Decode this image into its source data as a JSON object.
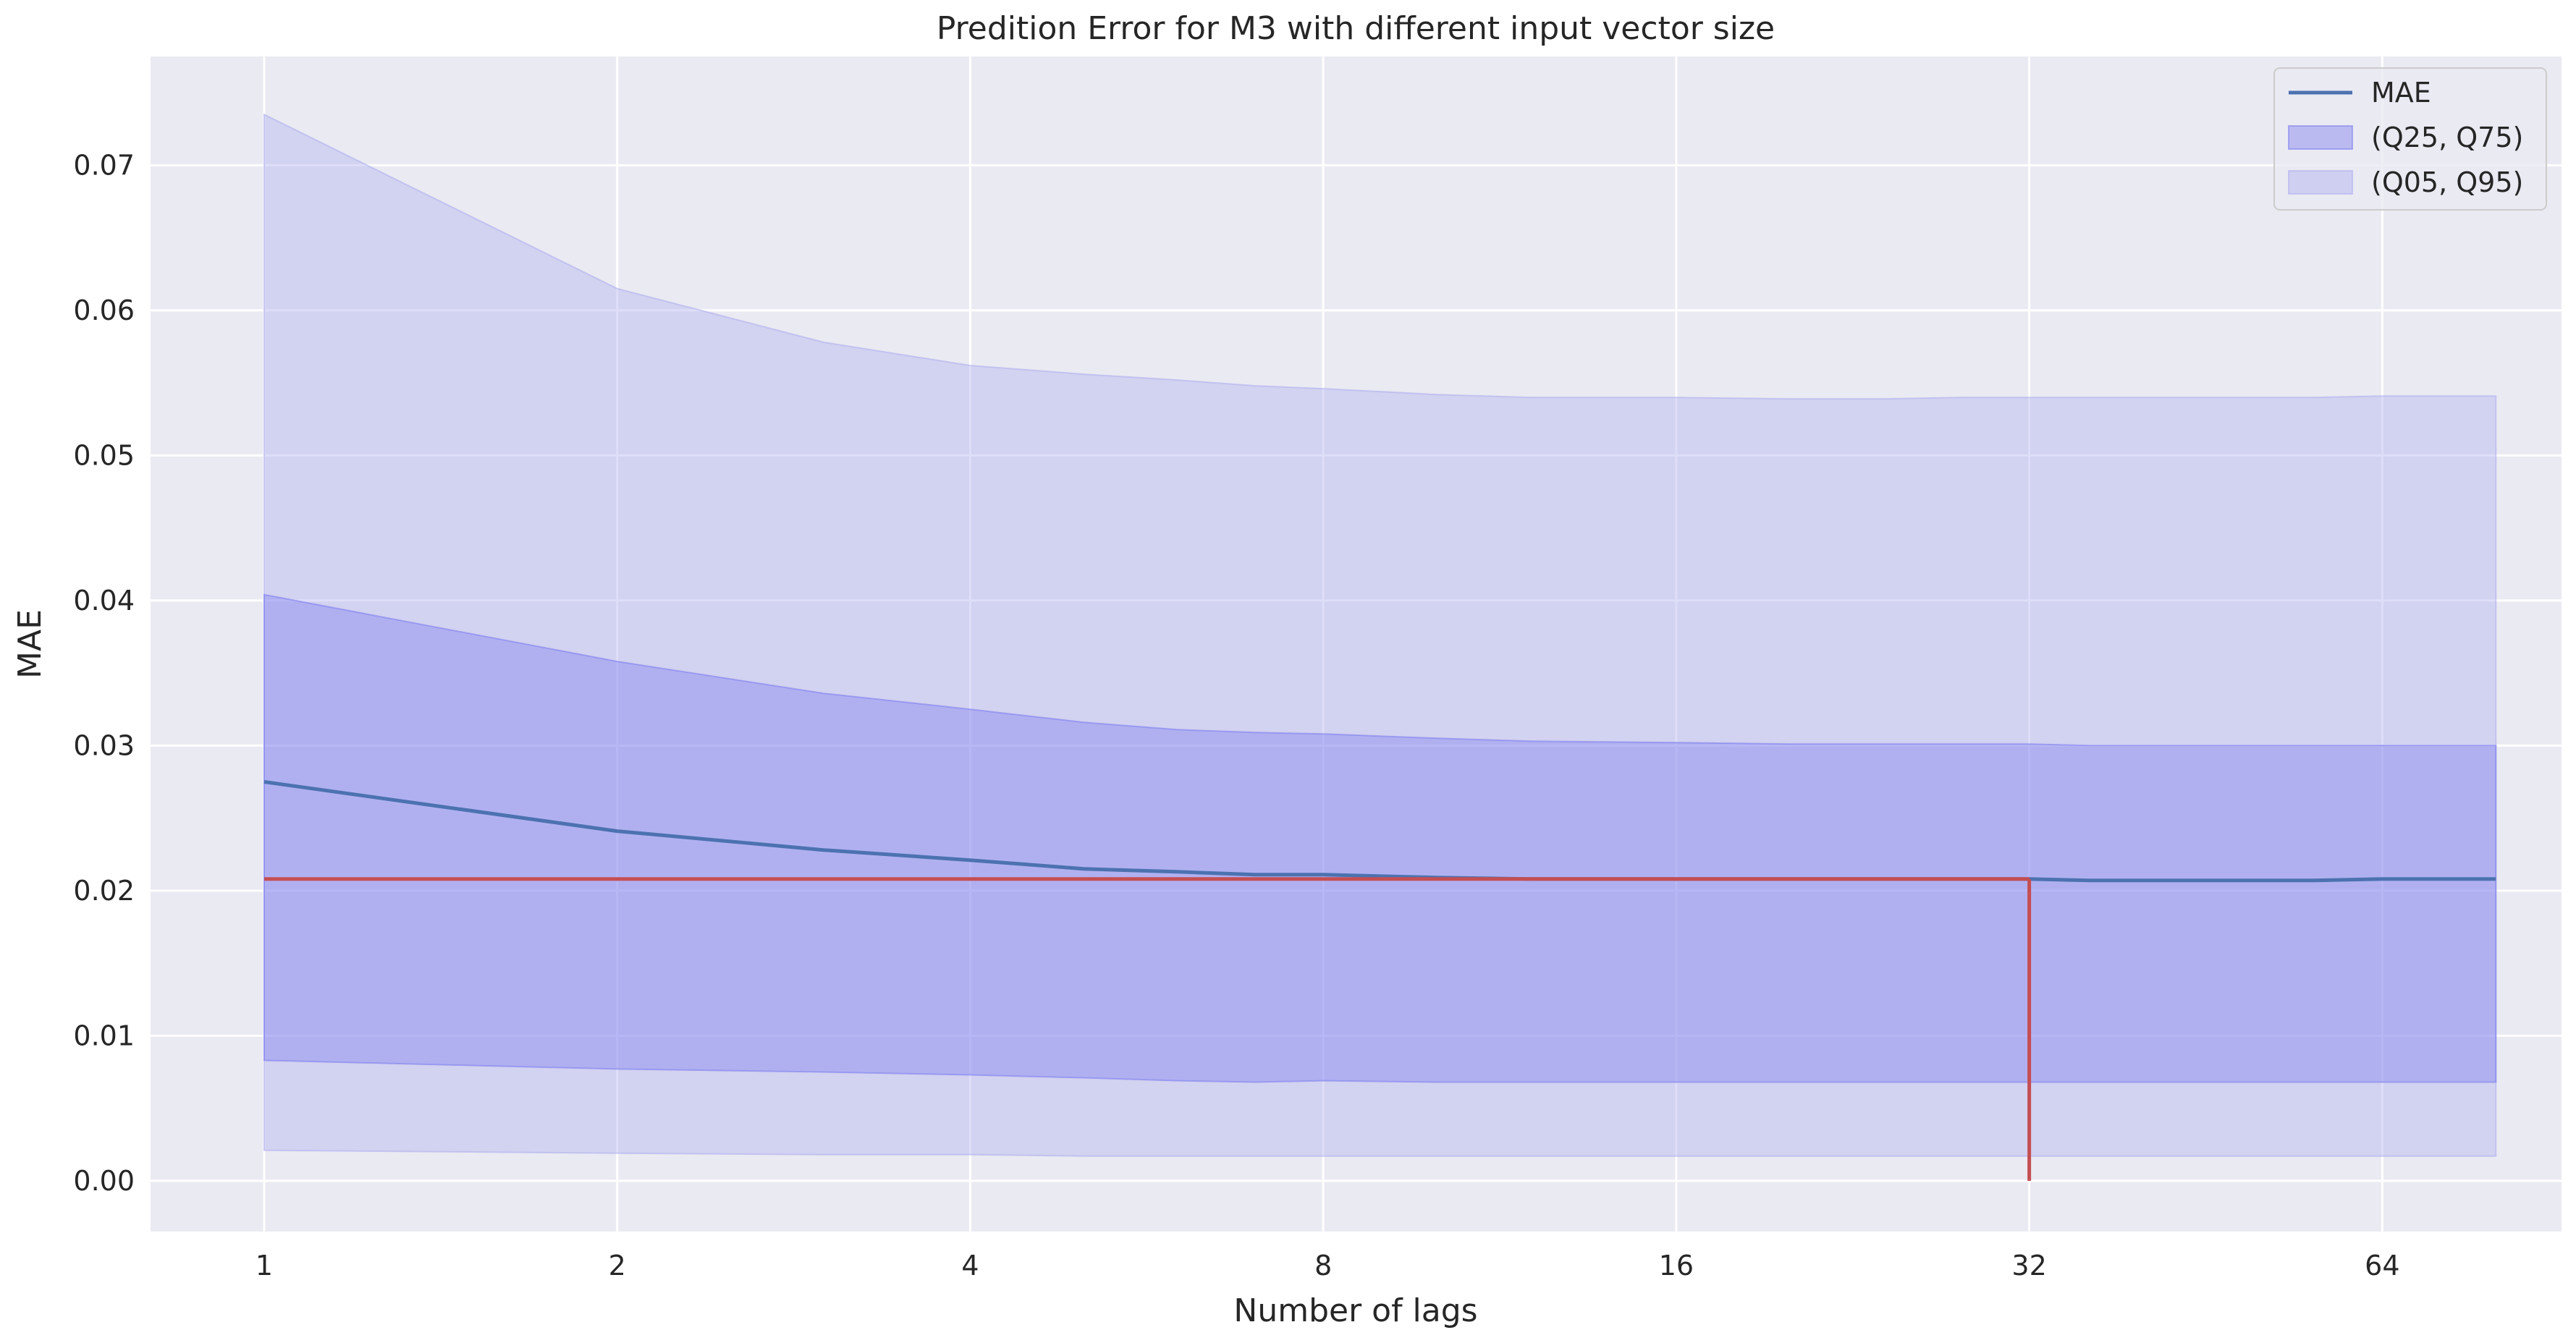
{
  "chart_data": {
    "type": "line",
    "title": "Predition Error for M3 with different input vector size",
    "xlabel": "Number of lags",
    "ylabel": "MAE",
    "x_scale": "log2",
    "xlim": [
      0.8,
      91
    ],
    "ylim": [
      -0.0035,
      0.0775
    ],
    "x_ticks": [
      1,
      2,
      4,
      8,
      16,
      32,
      64
    ],
    "x_tick_labels": [
      "1",
      "2",
      "4",
      "8",
      "16",
      "32",
      "64"
    ],
    "y_ticks": [
      0.0,
      0.01,
      0.02,
      0.03,
      0.04,
      0.05,
      0.06,
      0.07
    ],
    "y_tick_labels": [
      "0.00",
      "0.01",
      "0.02",
      "0.03",
      "0.04",
      "0.05",
      "0.06",
      "0.07"
    ],
    "grid": true,
    "legend_position": "top-right",
    "x": [
      1,
      2,
      3,
      4,
      5,
      6,
      7,
      8,
      10,
      12,
      16,
      20,
      24,
      28,
      32,
      36,
      40,
      48,
      56,
      64,
      72,
      80
    ],
    "series": [
      {
        "name": "MAE",
        "kind": "line",
        "color": "#4c72b0",
        "values": [
          0.0275,
          0.0241,
          0.0228,
          0.0221,
          0.0215,
          0.0213,
          0.0211,
          0.0211,
          0.0209,
          0.0208,
          0.0208,
          0.0208,
          0.0208,
          0.0208,
          0.0208,
          0.0207,
          0.0207,
          0.0207,
          0.0207,
          0.0208,
          0.0208,
          0.0208
        ]
      },
      {
        "name": "(Q25, Q75)",
        "kind": "band",
        "color": "#8080f0",
        "lower": [
          0.0083,
          0.0077,
          0.0075,
          0.0073,
          0.0071,
          0.0069,
          0.0068,
          0.0069,
          0.0068,
          0.0068,
          0.0068,
          0.0068,
          0.0068,
          0.0068,
          0.0068,
          0.0068,
          0.0068,
          0.0068,
          0.0068,
          0.0068,
          0.0068,
          0.0068
        ],
        "upper": [
          0.0404,
          0.0358,
          0.0336,
          0.0325,
          0.0316,
          0.0311,
          0.0309,
          0.0308,
          0.0305,
          0.0303,
          0.0302,
          0.0301,
          0.0301,
          0.0301,
          0.0301,
          0.03,
          0.03,
          0.03,
          0.03,
          0.03,
          0.03,
          0.03
        ]
      },
      {
        "name": "(Q05, Q95)",
        "kind": "band",
        "color": "#b0b0f0",
        "lower": [
          0.0021,
          0.0019,
          0.0018,
          0.0018,
          0.0017,
          0.0017,
          0.0017,
          0.0017,
          0.0017,
          0.0017,
          0.0017,
          0.0017,
          0.0017,
          0.0017,
          0.0017,
          0.0017,
          0.0017,
          0.0017,
          0.0017,
          0.0017,
          0.0017,
          0.0017
        ],
        "upper": [
          0.0735,
          0.0615,
          0.0578,
          0.0562,
          0.0556,
          0.0552,
          0.0548,
          0.0546,
          0.0542,
          0.054,
          0.054,
          0.0539,
          0.0539,
          0.054,
          0.054,
          0.054,
          0.054,
          0.054,
          0.054,
          0.0541,
          0.0541,
          0.0541
        ]
      }
    ],
    "reference_lines": [
      {
        "orientation": "horizontal",
        "y": 0.0208,
        "x_from": 1,
        "x_to": 32,
        "color": "#c44e52"
      },
      {
        "orientation": "vertical",
        "x": 32,
        "y_from": 0.0,
        "y_to": 0.0208,
        "color": "#c44e52"
      }
    ],
    "colors": {
      "plot_background": "#eaeaf2",
      "grid": "#ffffff"
    }
  }
}
